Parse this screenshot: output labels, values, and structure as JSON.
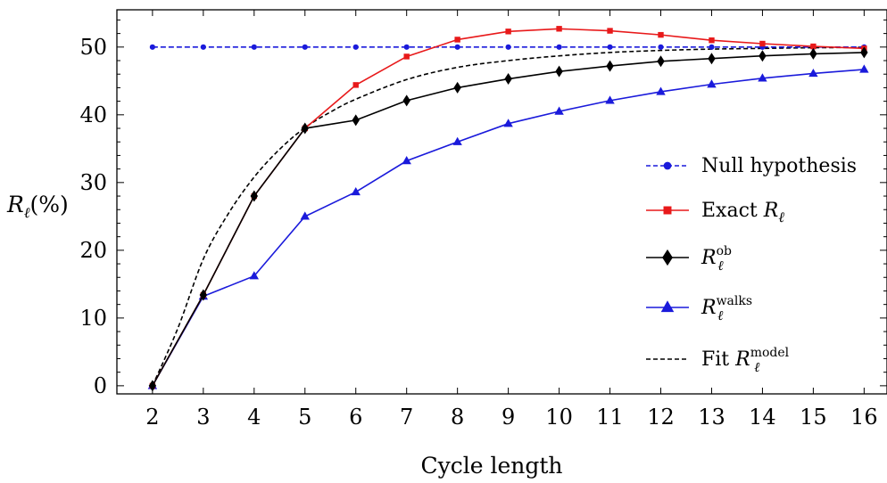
{
  "chart_data": {
    "type": "line",
    "xlabel": "Cycle length",
    "ylabel": "R_ℓ(%)",
    "xlim": [
      1.3,
      16.45
    ],
    "ylim": [
      -1.2,
      55.5
    ],
    "x_ticks": [
      2,
      3,
      4,
      5,
      6,
      7,
      8,
      9,
      10,
      11,
      12,
      13,
      14,
      15,
      16
    ],
    "y_ticks": [
      0,
      10,
      20,
      30,
      40,
      50
    ],
    "legend_position": "right",
    "series": [
      {
        "name": "Null hypothesis",
        "color": "#1a1adb",
        "line_style": "dashed",
        "marker": "circle",
        "x": [
          2,
          3,
          4,
          5,
          6,
          7,
          8,
          9,
          10,
          11,
          12,
          13,
          14,
          15,
          16
        ],
        "values": [
          50,
          50,
          50,
          50,
          50,
          50,
          50,
          50,
          50,
          50,
          50,
          50,
          50,
          50,
          50
        ]
      },
      {
        "name": "Exact R_ℓ",
        "color": "#e8191a",
        "line_style": "solid",
        "marker": "square",
        "x": [
          2,
          3,
          4,
          5,
          6,
          7,
          8,
          9,
          10,
          11,
          12,
          13,
          14,
          15,
          16
        ],
        "values": [
          0,
          13.4,
          28.0,
          38.0,
          44.4,
          48.6,
          51.1,
          52.3,
          52.7,
          52.4,
          51.8,
          51.0,
          50.5,
          50.1,
          49.8
        ]
      },
      {
        "name": "R_ℓ^ob",
        "color": "#000000",
        "line_style": "solid",
        "marker": "diamond",
        "x": [
          2,
          3,
          4,
          5,
          6,
          7,
          8,
          9,
          10,
          11,
          12,
          13,
          14,
          15,
          16
        ],
        "values": [
          0,
          13.4,
          28.0,
          38.0,
          39.2,
          42.1,
          44.0,
          45.3,
          46.4,
          47.2,
          47.9,
          48.3,
          48.7,
          49.0,
          49.2
        ]
      },
      {
        "name": "R_ℓ^walks",
        "color": "#1a1adb",
        "line_style": "solid",
        "marker": "triangle",
        "x": [
          2,
          3,
          4,
          5,
          6,
          7,
          8,
          9,
          10,
          11,
          12,
          13,
          14,
          15,
          16
        ],
        "values": [
          0,
          13.2,
          16.2,
          25.0,
          28.6,
          33.2,
          36.0,
          38.7,
          40.5,
          42.1,
          43.4,
          44.5,
          45.4,
          46.1,
          46.7
        ]
      },
      {
        "name": "Fit R_ℓ^model",
        "color": "#000000",
        "line_style": "dashed",
        "marker": "none",
        "x": [
          2,
          2.5,
          3,
          3.5,
          4,
          4.5,
          5,
          5.5,
          6,
          7,
          8,
          9,
          10,
          11,
          12,
          13,
          14,
          15,
          16
        ],
        "values": [
          0,
          8.5,
          18.7,
          25.5,
          30.8,
          34.9,
          38.1,
          40.4,
          42.3,
          45.2,
          47.0,
          48.0,
          48.7,
          49.2,
          49.5,
          49.7,
          49.8,
          49.9,
          49.95
        ]
      }
    ]
  }
}
